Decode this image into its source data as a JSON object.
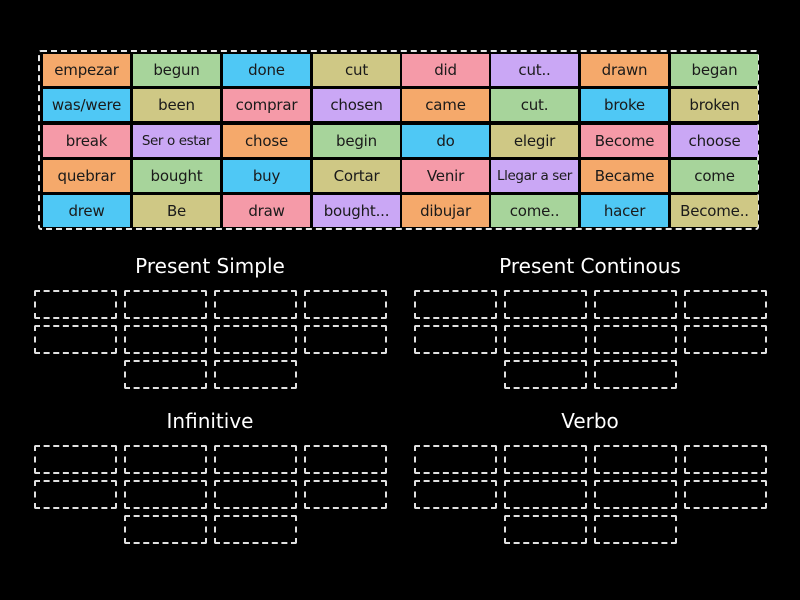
{
  "colors": {
    "background": "#000000",
    "orange": "#f5a96b",
    "green": "#a7d49b",
    "blue": "#4fc8f5",
    "olive": "#cfc885",
    "pink": "#f59aa8",
    "purple": "#caa7f5",
    "slot_border": "#e0e0e0",
    "title_text": "#ffffff"
  },
  "bank": {
    "rows": [
      [
        {
          "label": "empezar",
          "color": "orange"
        },
        {
          "label": "begun",
          "color": "green"
        },
        {
          "label": "done",
          "color": "blue"
        },
        {
          "label": "cut",
          "color": "olive"
        },
        {
          "label": "did",
          "color": "pink"
        },
        {
          "label": "cut..",
          "color": "purple"
        },
        {
          "label": "drawn",
          "color": "orange"
        },
        {
          "label": "began",
          "color": "green"
        }
      ],
      [
        {
          "label": "was/were",
          "color": "blue"
        },
        {
          "label": "been",
          "color": "olive"
        },
        {
          "label": "comprar",
          "color": "pink"
        },
        {
          "label": "chosen",
          "color": "purple"
        },
        {
          "label": "came",
          "color": "orange"
        },
        {
          "label": "cut.",
          "color": "green"
        },
        {
          "label": "broke",
          "color": "blue"
        },
        {
          "label": "broken",
          "color": "olive"
        }
      ],
      [
        {
          "label": "break",
          "color": "pink"
        },
        {
          "label": "Ser o estar",
          "color": "purple"
        },
        {
          "label": "chose",
          "color": "orange"
        },
        {
          "label": "begin",
          "color": "green"
        },
        {
          "label": "do",
          "color": "blue"
        },
        {
          "label": "elegir",
          "color": "olive"
        },
        {
          "label": "Become",
          "color": "pink"
        },
        {
          "label": "choose",
          "color": "purple"
        }
      ],
      [
        {
          "label": "quebrar",
          "color": "orange"
        },
        {
          "label": "bought",
          "color": "green"
        },
        {
          "label": "buy",
          "color": "blue"
        },
        {
          "label": "Cortar",
          "color": "olive"
        },
        {
          "label": "Venir",
          "color": "pink"
        },
        {
          "label": "Llegar a ser",
          "color": "purple"
        },
        {
          "label": "Became",
          "color": "orange"
        },
        {
          "label": "come",
          "color": "green"
        }
      ],
      [
        {
          "label": "drew",
          "color": "blue"
        },
        {
          "label": "Be",
          "color": "olive"
        },
        {
          "label": "draw",
          "color": "pink"
        },
        {
          "label": "bought...",
          "color": "purple"
        },
        {
          "label": "dibujar",
          "color": "orange"
        },
        {
          "label": "come..",
          "color": "green"
        },
        {
          "label": "hacer",
          "color": "blue"
        },
        {
          "label": "Become..",
          "color": "olive"
        }
      ]
    ]
  },
  "groups": [
    {
      "title": "Present Simple",
      "slot_count": 10
    },
    {
      "title": "Present Continous",
      "slot_count": 10
    },
    {
      "title": "Infinitive",
      "slot_count": 10
    },
    {
      "title": "Verbo",
      "slot_count": 10
    }
  ]
}
